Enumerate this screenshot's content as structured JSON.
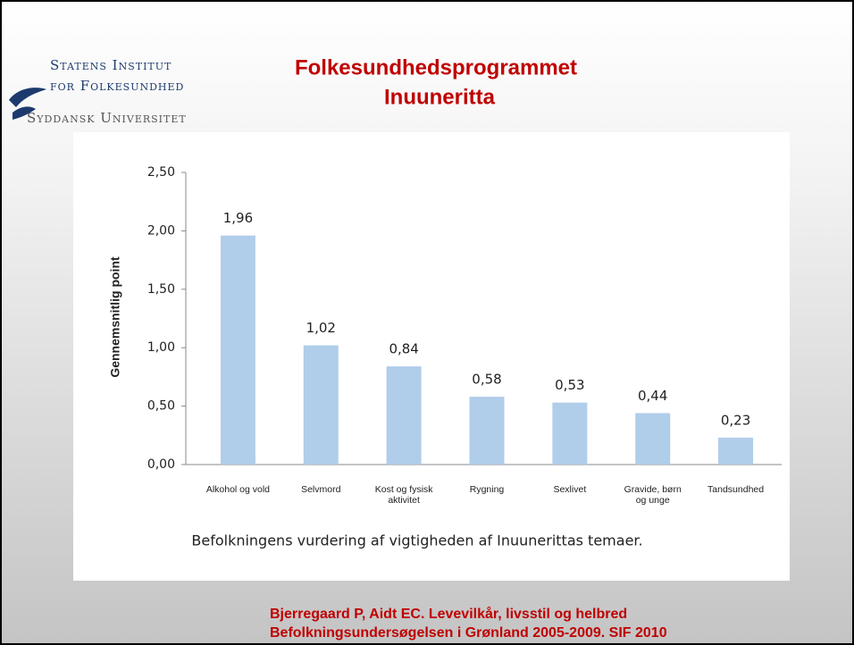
{
  "logo": {
    "lines": [
      "Statens Institut",
      "for Folkesundhed",
      "Syddansk Universitet"
    ]
  },
  "title": {
    "lines": [
      "Folkesundhedsprogrammet",
      "Inuuneritta"
    ]
  },
  "citation": {
    "lines": [
      "Bjerregaard P, Aidt EC. Levevilkår, livsstil og helbred",
      "Befolkningsundersøgelsen i Grønland 2005-2009. SIF 2010"
    ]
  },
  "chart_data": {
    "type": "bar",
    "ylabel": "Gennemsnitlig point",
    "xlabel": "Befolkningens vurdering af vigtigheden af Inuunerittas temaer.",
    "categories": [
      "Alkohol og vold",
      "Selvmord",
      "Kost og fysisk\naktivitet",
      "Rygning",
      "Sexlivet",
      "Gravide, børn\nog unge",
      "Tandsundhed"
    ],
    "values": [
      1.96,
      1.02,
      0.84,
      0.58,
      0.53,
      0.44,
      0.23
    ],
    "value_labels": [
      "1,96",
      "1,02",
      "0,84",
      "0,58",
      "0,53",
      "0,44",
      "0,23"
    ],
    "color": "#b0cdea",
    "ylim": [
      0,
      2.5
    ],
    "yticks": [
      {
        "value": 0,
        "label": "0,00"
      },
      {
        "value": 0.5,
        "label": "0,50"
      },
      {
        "value": 1,
        "label": "1,00"
      },
      {
        "value": 1.5,
        "label": "1,50"
      },
      {
        "value": 2,
        "label": "2,00"
      },
      {
        "value": 2.5,
        "label": "2,50"
      }
    ]
  }
}
